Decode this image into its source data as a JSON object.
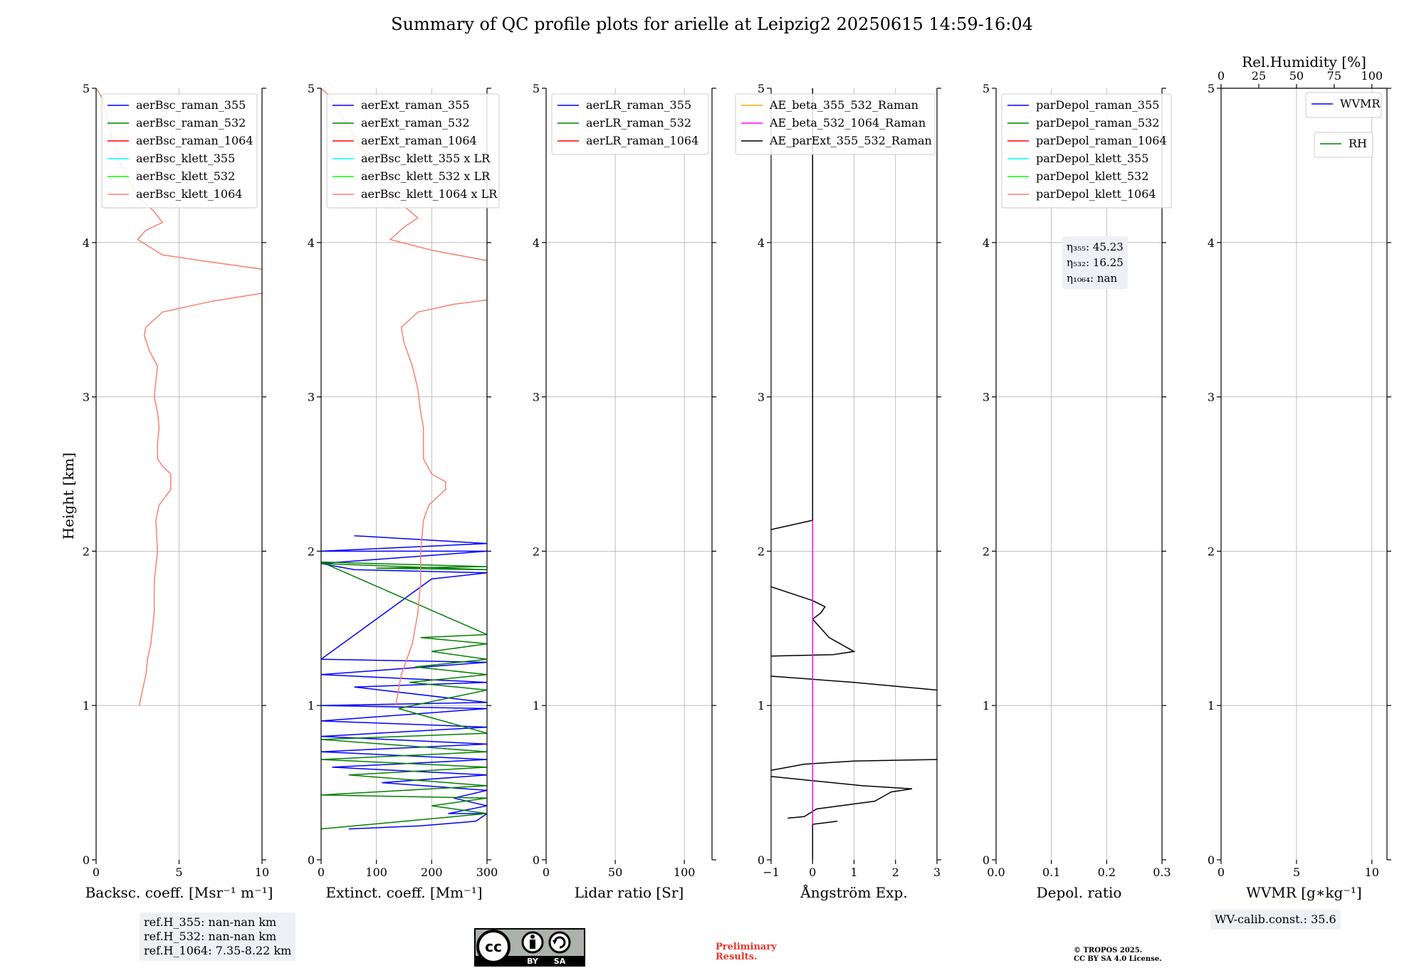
{
  "title": "Summary of QC profile plots for arielle at Leipzig2 20250615 14:59-16:04",
  "ylabel": "Height [km]",
  "colors": {
    "raman_355": "#0000ff",
    "raman_532": "#008000",
    "raman_1064": "#ff0000",
    "klett_355": "#00ffff",
    "klett_532": "#00ff00",
    "klett_1064": "#fa8072",
    "ae_beta_355_532": "#ffa500",
    "ae_beta_532_1064": "#ff00ff",
    "ae_parext": "#000000",
    "grid": "#b0b0b0"
  },
  "chart_data": [
    {
      "type": "line",
      "name": "backscatter",
      "xlabel": "Backsc. coeff. [Msr⁻¹ m⁻¹]",
      "xlim": [
        0,
        10
      ],
      "ylim": [
        0,
        5
      ],
      "xticks": [
        "0",
        "5",
        "10"
      ],
      "xtick_values": [
        0,
        5,
        10
      ],
      "yticks": [
        "0",
        "1",
        "2",
        "3",
        "4",
        "5"
      ],
      "legend": [
        "aerBsc_raman_355",
        "aerBsc_raman_532",
        "aerBsc_raman_1064",
        "aerBsc_klett_355",
        "aerBsc_klett_532",
        "aerBsc_klett_1064"
      ],
      "legend_colors": [
        "raman_355",
        "raman_532",
        "raman_1064",
        "klett_355",
        "klett_532",
        "klett_1064"
      ],
      "series": [
        {
          "color": "klett_1064",
          "points": [
            [
              2.6,
              1.0
            ],
            [
              2.8,
              1.1
            ],
            [
              3.0,
              1.2
            ],
            [
              3.1,
              1.3
            ],
            [
              3.3,
              1.4
            ],
            [
              3.5,
              1.6
            ],
            [
              3.5,
              1.8
            ],
            [
              3.7,
              2.0
            ],
            [
              3.6,
              2.2
            ],
            [
              3.8,
              2.3
            ],
            [
              4.5,
              2.4
            ],
            [
              4.5,
              2.5
            ],
            [
              4.0,
              2.55
            ],
            [
              3.7,
              2.6
            ],
            [
              3.7,
              2.7
            ],
            [
              3.8,
              2.8
            ],
            [
              3.7,
              2.9
            ],
            [
              3.5,
              3.0
            ],
            [
              3.7,
              3.2
            ],
            [
              3.2,
              3.3
            ],
            [
              2.9,
              3.4
            ],
            [
              3.0,
              3.45
            ],
            [
              4.0,
              3.55
            ],
            [
              7.0,
              3.62
            ],
            [
              10.5,
              3.68
            ]
          ]
        },
        {
          "color": "klett_1064",
          "points": [
            [
              10.5,
              3.82
            ],
            [
              6.5,
              3.88
            ],
            [
              4.0,
              3.92
            ],
            [
              2.5,
              4.02
            ],
            [
              3.0,
              4.08
            ],
            [
              4.0,
              4.13
            ],
            [
              3.5,
              4.2
            ],
            [
              2.5,
              4.3
            ],
            [
              1.5,
              4.5
            ],
            [
              0.8,
              4.75
            ],
            [
              0.3,
              4.95
            ],
            [
              0.0,
              5.0
            ]
          ]
        }
      ]
    },
    {
      "type": "line",
      "name": "extinction",
      "xlabel": "Extinct. coeff. [Mm⁻¹]",
      "xlim": [
        0,
        300
      ],
      "ylim": [
        0,
        5
      ],
      "xticks": [
        "0",
        "100",
        "200",
        "300"
      ],
      "xtick_values": [
        0,
        100,
        200,
        300
      ],
      "yticks": [
        "0",
        "1",
        "2",
        "3",
        "4",
        "5"
      ],
      "legend": [
        "aerExt_raman_355",
        "aerExt_raman_532",
        "aerExt_raman_1064",
        "aerBsc_klett_355 x LR",
        "aerBsc_klett_532 x LR",
        "aerBsc_klett_1064 x LR"
      ],
      "legend_colors": [
        "raman_355",
        "raman_532",
        "raman_1064",
        "klett_355",
        "klett_532",
        "klett_1064"
      ],
      "series": [
        {
          "color": "raman_355",
          "points": [
            [
              50,
              0.2
            ],
            [
              180,
              0.22
            ],
            [
              280,
              0.25
            ],
            [
              300,
              0.3
            ],
            [
              230,
              0.3
            ],
            [
              300,
              0.35
            ],
            [
              240,
              0.4
            ],
            [
              300,
              0.45
            ],
            [
              110,
              0.5
            ],
            [
              300,
              0.55
            ],
            [
              20,
              0.6
            ],
            [
              300,
              0.65
            ],
            [
              0,
              0.7
            ],
            [
              300,
              0.75
            ],
            [
              0,
              0.8
            ],
            [
              300,
              0.86
            ],
            [
              0,
              0.9
            ],
            [
              300,
              0.98
            ],
            [
              0,
              1.0
            ],
            [
              300,
              1.02
            ],
            [
              60,
              1.12
            ],
            [
              300,
              1.15
            ],
            [
              0,
              1.2
            ],
            [
              300,
              1.28
            ],
            [
              0,
              1.3
            ],
            [
              200,
              1.82
            ],
            [
              300,
              1.86
            ],
            [
              60,
              1.88
            ],
            [
              0,
              1.92
            ],
            [
              300,
              2.0
            ],
            [
              0,
              2.0
            ],
            [
              300,
              2.05
            ],
            [
              60,
              2.1
            ]
          ]
        },
        {
          "color": "raman_532",
          "points": [
            [
              0,
              0.2
            ],
            [
              300,
              0.3
            ],
            [
              200,
              0.35
            ],
            [
              300,
              0.4
            ],
            [
              0,
              0.42
            ],
            [
              300,
              0.48
            ],
            [
              50,
              0.55
            ],
            [
              300,
              0.6
            ],
            [
              0,
              0.65
            ],
            [
              300,
              0.7
            ],
            [
              0,
              0.78
            ],
            [
              300,
              0.82
            ],
            [
              140,
              0.98
            ],
            [
              300,
              1.1
            ],
            [
              160,
              1.15
            ],
            [
              300,
              1.2
            ],
            [
              170,
              1.25
            ],
            [
              300,
              1.3
            ],
            [
              200,
              1.35
            ],
            [
              300,
              1.4
            ],
            [
              180,
              1.44
            ],
            [
              300,
              1.46
            ],
            [
              0,
              1.93
            ],
            [
              300,
              1.9
            ],
            [
              100,
              1.89
            ],
            [
              300,
              1.88
            ],
            [
              0,
              1.92
            ]
          ]
        },
        {
          "color": "klett_1064",
          "points": [
            [
              135,
              1.0
            ],
            [
              145,
              1.2
            ],
            [
              165,
              1.4
            ],
            [
              175,
              1.6
            ],
            [
              180,
              1.8
            ],
            [
              180,
              2.0
            ],
            [
              185,
              2.2
            ],
            [
              195,
              2.3
            ],
            [
              225,
              2.4
            ],
            [
              225,
              2.45
            ],
            [
              200,
              2.5
            ],
            [
              185,
              2.6
            ],
            [
              185,
              2.8
            ],
            [
              180,
              2.9
            ],
            [
              175,
              3.05
            ],
            [
              165,
              3.2
            ],
            [
              150,
              3.35
            ],
            [
              145,
              3.45
            ],
            [
              175,
              3.55
            ],
            [
              240,
              3.6
            ],
            [
              305,
              3.63
            ]
          ]
        },
        {
          "color": "klett_1064",
          "points": [
            [
              305,
              3.88
            ],
            [
              200,
              3.95
            ],
            [
              125,
              4.02
            ],
            [
              150,
              4.1
            ],
            [
              175,
              4.16
            ],
            [
              155,
              4.22
            ],
            [
              125,
              4.3
            ],
            [
              90,
              4.5
            ],
            [
              50,
              4.75
            ],
            [
              15,
              4.95
            ],
            [
              0,
              5.0
            ]
          ]
        }
      ]
    },
    {
      "type": "line",
      "name": "lidar_ratio",
      "xlabel": "Lidar ratio [Sr]",
      "xlim": [
        0,
        120
      ],
      "ylim": [
        0,
        5
      ],
      "xticks": [
        "0",
        "50",
        "100"
      ],
      "xtick_values": [
        0,
        50,
        100
      ],
      "yticks": [
        "0",
        "1",
        "2",
        "3",
        "4",
        "5"
      ],
      "legend": [
        "aerLR_raman_355",
        "aerLR_raman_532",
        "aerLR_raman_1064"
      ],
      "legend_colors": [
        "raman_355",
        "raman_532",
        "raman_1064"
      ],
      "series": []
    },
    {
      "type": "line",
      "name": "angstrom",
      "xlabel": "Ångström Exp.",
      "xlim": [
        -1,
        3
      ],
      "ylim": [
        0,
        5
      ],
      "xticks": [
        "−1",
        "0",
        "1",
        "2",
        "3"
      ],
      "xtick_values": [
        -1,
        0,
        1,
        2,
        3
      ],
      "yticks": [
        "0",
        "1",
        "2",
        "3",
        "4",
        "5"
      ],
      "legend": [
        "AE_beta_355_532_Raman",
        "AE_beta_532_1064_Raman",
        "AE_parExt_355_532_Raman"
      ],
      "legend_colors": [
        "ae_beta_355_532",
        "ae_beta_532_1064",
        "ae_parext"
      ],
      "series": [
        {
          "color": "ae_parext",
          "points": [
            [
              -0.6,
              0.27
            ],
            [
              -0.2,
              0.28
            ],
            [
              0.1,
              0.33
            ],
            [
              1.5,
              0.38
            ],
            [
              1.7,
              0.41
            ],
            [
              1.9,
              0.44
            ],
            [
              2.4,
              0.46
            ],
            [
              1.2,
              0.48
            ],
            [
              -1.0,
              0.54
            ]
          ]
        },
        {
          "color": "ae_parext",
          "points": [
            [
              -1.0,
              0.58
            ],
            [
              -0.2,
              0.62
            ],
            [
              1.0,
              0.64
            ],
            [
              3.0,
              0.65
            ]
          ]
        },
        {
          "color": "ae_parext",
          "points": [
            [
              3.0,
              1.1
            ],
            [
              1.0,
              1.15
            ],
            [
              -1.0,
              1.19
            ]
          ]
        },
        {
          "color": "ae_parext",
          "points": [
            [
              -1.0,
              1.32
            ],
            [
              0.5,
              1.33
            ],
            [
              1.0,
              1.35
            ],
            [
              0.8,
              1.38
            ],
            [
              0.4,
              1.44
            ],
            [
              0.2,
              1.5
            ],
            [
              0.0,
              1.56
            ],
            [
              0.2,
              1.6
            ],
            [
              0.3,
              1.64
            ],
            [
              0.0,
              1.68
            ],
            [
              -1.0,
              1.77
            ]
          ]
        },
        {
          "color": "ae_parext",
          "points": [
            [
              -1.0,
              2.14
            ],
            [
              0.0,
              2.2
            ]
          ]
        },
        {
          "color": "ae_parext",
          "points": [
            [
              0.0,
              2.2
            ],
            [
              0.0,
              5.0
            ]
          ]
        },
        {
          "color": "ae_parext",
          "points": [
            [
              0.0,
              0.0
            ],
            [
              0.0,
              0.23
            ]
          ]
        },
        {
          "color": "ae_parext",
          "points": [
            [
              0.0,
              0.23
            ],
            [
              0.3,
              0.24
            ],
            [
              0.6,
              0.25
            ]
          ]
        },
        {
          "color": "ae_beta_532_1064",
          "points": [
            [
              0.0,
              0.23
            ],
            [
              0.0,
              2.2
            ]
          ]
        }
      ]
    },
    {
      "type": "line",
      "name": "depol",
      "xlabel": "Depol. ratio",
      "xlim": [
        0,
        0.3
      ],
      "ylim": [
        0,
        5
      ],
      "xticks": [
        "0.0",
        "0.1",
        "0.2",
        "0.3"
      ],
      "xtick_values": [
        0,
        0.1,
        0.2,
        0.3
      ],
      "yticks": [
        "0",
        "1",
        "2",
        "3",
        "4",
        "5"
      ],
      "legend": [
        "parDepol_raman_355",
        "parDepol_raman_532",
        "parDepol_raman_1064",
        "parDepol_klett_355",
        "parDepol_klett_532",
        "parDepol_klett_1064"
      ],
      "legend_colors": [
        "raman_355",
        "raman_532",
        "raman_1064",
        "klett_355",
        "klett_532",
        "klett_1064"
      ],
      "series": []
    },
    {
      "type": "line",
      "name": "wvmr",
      "xlabel": "WVMR [g∗kg⁻¹]",
      "xlim": [
        0,
        11
      ],
      "ylim": [
        0,
        5
      ],
      "xticks": [
        "0",
        "5",
        "10"
      ],
      "xtick_values": [
        0,
        5,
        10
      ],
      "yticks": [
        "0",
        "1",
        "2",
        "3",
        "4",
        "5"
      ],
      "top_xlabel": "Rel.Humidity [%]",
      "top_xticks": [
        "0",
        "25",
        "50",
        "75",
        "100"
      ],
      "top_xlim": [
        0,
        110
      ],
      "top_xtick_values": [
        0,
        25,
        50,
        75,
        100
      ],
      "legend": [
        "WVMR"
      ],
      "legend_colors": [
        "raman_355"
      ],
      "legend2": [
        "RH"
      ],
      "legend2_colors": [
        "raman_532"
      ],
      "series": []
    }
  ],
  "ref_heights": [
    "ref.H_355: nan-nan km",
    "ref.H_532: nan-nan km",
    "ref.H_1064: 7.35-8.22 km"
  ],
  "depol_annotation": [
    "η₃₅₅: 45.23",
    "η₅₃₂: 16.25",
    "η₁₀₆₄: nan"
  ],
  "wv_calib": "WV-calib.const.: 35.6",
  "license": {
    "by": "BY",
    "sa": "SA",
    "cc": "cc"
  },
  "preliminary": [
    "Preliminary",
    "Results."
  ],
  "copyright": [
    "© TROPOS 2025.",
    "CC BY SA 4.0 License."
  ]
}
